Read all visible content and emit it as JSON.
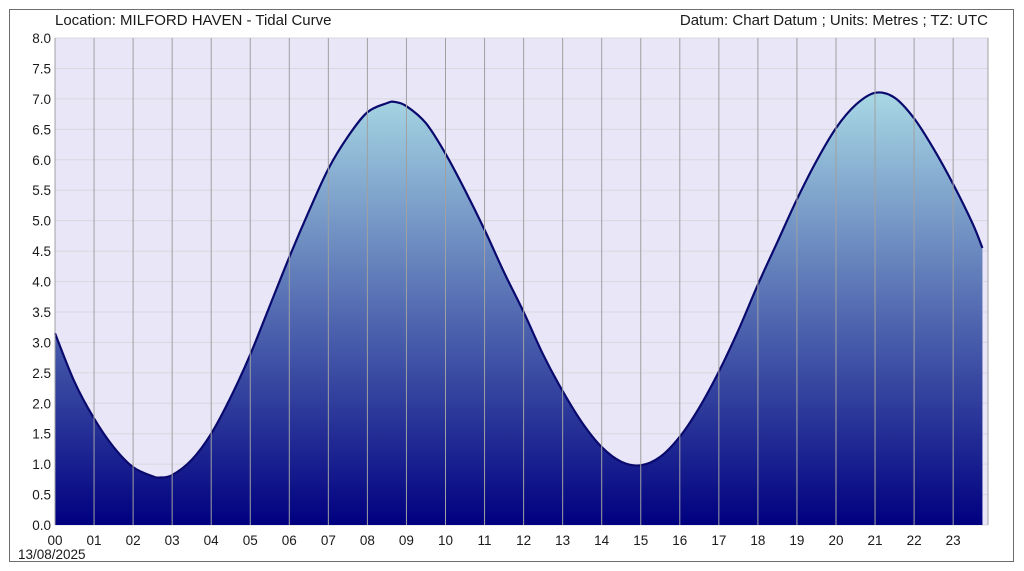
{
  "header": {
    "location": "Location: MILFORD HAVEN - Tidal Curve",
    "datum": "Datum: Chart Datum ; Units: Metres ; TZ: UTC"
  },
  "date_label": "13/08/2025",
  "colors": {
    "plot_background": "#e8e6f7",
    "grid_vertical": "#a0a0a0",
    "grid_horizontal": "#d8d8e0",
    "fill_top": "#a8d8e4",
    "fill_bottom": "#000080",
    "curve": "#0a0a6e"
  },
  "chart_data": {
    "type": "area",
    "title": "Location: MILFORD HAVEN - Tidal Curve",
    "xlabel": "",
    "ylabel": "",
    "x_tick_labels": [
      "00",
      "01",
      "02",
      "03",
      "04",
      "05",
      "06",
      "07",
      "08",
      "09",
      "10",
      "11",
      "12",
      "13",
      "14",
      "15",
      "16",
      "17",
      "18",
      "19",
      "20",
      "21",
      "22",
      "23"
    ],
    "y_tick_labels": [
      "0.0",
      "0.5",
      "1.0",
      "1.5",
      "2.0",
      "2.5",
      "3.0",
      "3.5",
      "4.0",
      "4.5",
      "5.0",
      "5.5",
      "6.0",
      "6.5",
      "7.0",
      "7.5",
      "8.0"
    ],
    "xlim": [
      0,
      24
    ],
    "ylim": [
      0,
      8
    ],
    "grid": true,
    "units": "Metres",
    "series": [
      {
        "x": [
          0,
          0.5,
          1,
          1.5,
          2,
          2.5,
          2.7,
          3,
          3.5,
          4,
          4.5,
          5,
          5.5,
          6,
          6.5,
          7,
          7.5,
          8,
          8.5,
          8.7,
          9,
          9.5,
          10,
          10.5,
          11,
          11.5,
          12,
          12.5,
          13,
          13.5,
          14,
          14.5,
          15,
          15.5,
          16,
          16.5,
          17,
          17.5,
          18,
          18.5,
          19,
          19.5,
          20,
          20.5,
          21,
          21.5,
          22,
          22.5,
          23,
          23.5,
          23.75
        ],
        "y": [
          3.15,
          2.35,
          1.75,
          1.28,
          0.95,
          0.8,
          0.78,
          0.82,
          1.07,
          1.5,
          2.1,
          2.8,
          3.6,
          4.4,
          5.15,
          5.85,
          6.38,
          6.78,
          6.93,
          6.95,
          6.88,
          6.6,
          6.1,
          5.5,
          4.85,
          4.15,
          3.5,
          2.8,
          2.2,
          1.68,
          1.28,
          1.04,
          0.98,
          1.12,
          1.45,
          1.93,
          2.52,
          3.2,
          3.95,
          4.65,
          5.35,
          5.98,
          6.52,
          6.9,
          7.1,
          7.02,
          6.68,
          6.18,
          5.6,
          4.95,
          4.55
        ]
      }
    ]
  }
}
